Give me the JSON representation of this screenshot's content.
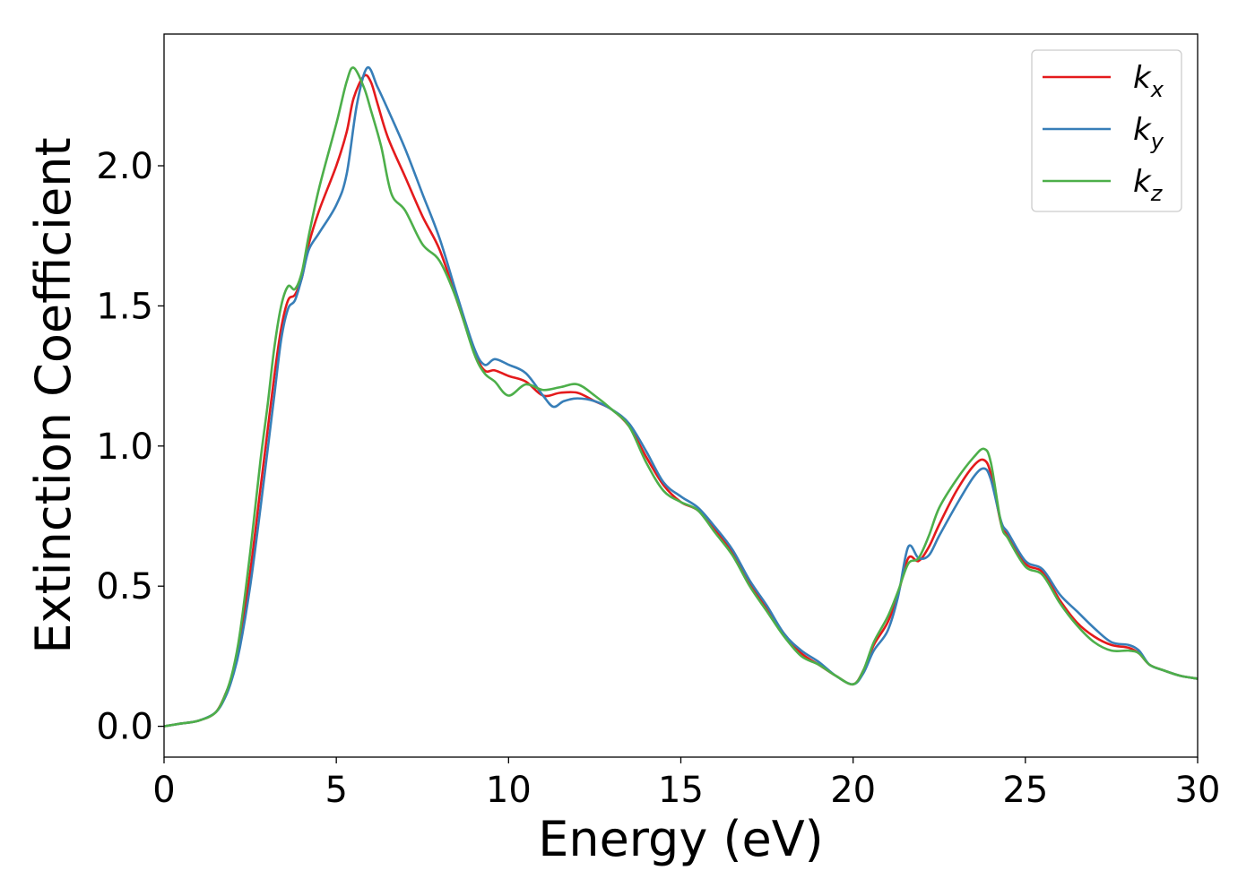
{
  "chart_data": {
    "type": "line",
    "title": "",
    "xlabel": "Energy (eV)",
    "ylabel": "Extinction Coefficient",
    "xlim": [
      0,
      30
    ],
    "ylim": [
      -0.11,
      2.47
    ],
    "xticks": [
      0,
      5,
      10,
      15,
      20,
      25,
      30
    ],
    "xtick_labels": [
      "0",
      "5",
      "10",
      "15",
      "20",
      "25",
      "30"
    ],
    "yticks": [
      0.0,
      0.5,
      1.0,
      1.5,
      2.0
    ],
    "ytick_labels": [
      "0.0",
      "0.5",
      "1.0",
      "1.5",
      "2.0"
    ],
    "grid": false,
    "legend_position": "top-right",
    "series": [
      {
        "name": "k_x",
        "legend_main": "k",
        "legend_sub": "x",
        "color": "#e41a1c",
        "points": [
          [
            0,
            0.0
          ],
          [
            0.5,
            0.01
          ],
          [
            1.0,
            0.02
          ],
          [
            1.5,
            0.05
          ],
          [
            1.8,
            0.12
          ],
          [
            2.0,
            0.19
          ],
          [
            2.2,
            0.3
          ],
          [
            2.5,
            0.55
          ],
          [
            2.8,
            0.85
          ],
          [
            3.0,
            1.05
          ],
          [
            3.2,
            1.25
          ],
          [
            3.4,
            1.42
          ],
          [
            3.6,
            1.52
          ],
          [
            3.8,
            1.54
          ],
          [
            4.0,
            1.6
          ],
          [
            4.2,
            1.72
          ],
          [
            4.5,
            1.84
          ],
          [
            5.0,
            2.0
          ],
          [
            5.3,
            2.12
          ],
          [
            5.5,
            2.24
          ],
          [
            5.8,
            2.32
          ],
          [
            6.0,
            2.3
          ],
          [
            6.2,
            2.22
          ],
          [
            6.5,
            2.1
          ],
          [
            7.0,
            1.96
          ],
          [
            7.5,
            1.82
          ],
          [
            8.0,
            1.7
          ],
          [
            8.5,
            1.52
          ],
          [
            9.0,
            1.34
          ],
          [
            9.3,
            1.27
          ],
          [
            9.6,
            1.27
          ],
          [
            10.0,
            1.25
          ],
          [
            10.5,
            1.23
          ],
          [
            11.0,
            1.18
          ],
          [
            11.5,
            1.19
          ],
          [
            12.0,
            1.19
          ],
          [
            12.5,
            1.16
          ],
          [
            13.0,
            1.13
          ],
          [
            13.5,
            1.07
          ],
          [
            14.0,
            0.96
          ],
          [
            14.5,
            0.86
          ],
          [
            15.0,
            0.8
          ],
          [
            15.5,
            0.77
          ],
          [
            16.0,
            0.7
          ],
          [
            16.5,
            0.62
          ],
          [
            17.0,
            0.51
          ],
          [
            17.5,
            0.42
          ],
          [
            18.0,
            0.33
          ],
          [
            18.5,
            0.26
          ],
          [
            19.0,
            0.22
          ],
          [
            19.5,
            0.18
          ],
          [
            20.0,
            0.15
          ],
          [
            20.3,
            0.2
          ],
          [
            20.6,
            0.29
          ],
          [
            21.0,
            0.37
          ],
          [
            21.3,
            0.47
          ],
          [
            21.6,
            0.6
          ],
          [
            21.9,
            0.59
          ],
          [
            22.2,
            0.64
          ],
          [
            22.5,
            0.72
          ],
          [
            23.0,
            0.84
          ],
          [
            23.5,
            0.93
          ],
          [
            23.8,
            0.95
          ],
          [
            24.0,
            0.9
          ],
          [
            24.3,
            0.72
          ],
          [
            24.5,
            0.68
          ],
          [
            25.0,
            0.58
          ],
          [
            25.5,
            0.55
          ],
          [
            26.0,
            0.45
          ],
          [
            26.5,
            0.37
          ],
          [
            27.0,
            0.32
          ],
          [
            27.5,
            0.29
          ],
          [
            28.0,
            0.28
          ],
          [
            28.3,
            0.26
          ],
          [
            28.6,
            0.22
          ],
          [
            29.0,
            0.2
          ],
          [
            29.5,
            0.18
          ],
          [
            30.0,
            0.17
          ]
        ]
      },
      {
        "name": "k_y",
        "legend_main": "k",
        "legend_sub": "y",
        "color": "#377eb8",
        "points": [
          [
            0,
            0.0
          ],
          [
            0.5,
            0.01
          ],
          [
            1.0,
            0.02
          ],
          [
            1.5,
            0.05
          ],
          [
            1.8,
            0.11
          ],
          [
            2.0,
            0.18
          ],
          [
            2.2,
            0.28
          ],
          [
            2.5,
            0.5
          ],
          [
            2.8,
            0.78
          ],
          [
            3.0,
            0.98
          ],
          [
            3.2,
            1.18
          ],
          [
            3.4,
            1.38
          ],
          [
            3.6,
            1.49
          ],
          [
            3.8,
            1.52
          ],
          [
            4.0,
            1.6
          ],
          [
            4.2,
            1.7
          ],
          [
            4.5,
            1.76
          ],
          [
            5.0,
            1.86
          ],
          [
            5.3,
            1.97
          ],
          [
            5.6,
            2.22
          ],
          [
            5.9,
            2.35
          ],
          [
            6.2,
            2.28
          ],
          [
            6.5,
            2.2
          ],
          [
            7.0,
            2.06
          ],
          [
            7.5,
            1.9
          ],
          [
            8.0,
            1.74
          ],
          [
            8.5,
            1.54
          ],
          [
            9.0,
            1.35
          ],
          [
            9.3,
            1.29
          ],
          [
            9.6,
            1.31
          ],
          [
            10.0,
            1.29
          ],
          [
            10.5,
            1.26
          ],
          [
            11.0,
            1.18
          ],
          [
            11.3,
            1.14
          ],
          [
            11.6,
            1.16
          ],
          [
            12.0,
            1.17
          ],
          [
            12.5,
            1.16
          ],
          [
            13.0,
            1.13
          ],
          [
            13.5,
            1.08
          ],
          [
            14.0,
            0.98
          ],
          [
            14.5,
            0.87
          ],
          [
            15.0,
            0.82
          ],
          [
            15.5,
            0.78
          ],
          [
            16.0,
            0.71
          ],
          [
            16.5,
            0.63
          ],
          [
            17.0,
            0.52
          ],
          [
            17.5,
            0.43
          ],
          [
            18.0,
            0.33
          ],
          [
            18.5,
            0.27
          ],
          [
            19.0,
            0.23
          ],
          [
            19.5,
            0.18
          ],
          [
            20.0,
            0.15
          ],
          [
            20.3,
            0.19
          ],
          [
            20.6,
            0.27
          ],
          [
            21.0,
            0.34
          ],
          [
            21.3,
            0.46
          ],
          [
            21.6,
            0.64
          ],
          [
            21.9,
            0.6
          ],
          [
            22.2,
            0.61
          ],
          [
            22.5,
            0.68
          ],
          [
            23.0,
            0.79
          ],
          [
            23.5,
            0.89
          ],
          [
            23.8,
            0.92
          ],
          [
            24.0,
            0.88
          ],
          [
            24.3,
            0.73
          ],
          [
            24.5,
            0.69
          ],
          [
            25.0,
            0.59
          ],
          [
            25.5,
            0.56
          ],
          [
            26.0,
            0.47
          ],
          [
            26.5,
            0.41
          ],
          [
            27.0,
            0.35
          ],
          [
            27.5,
            0.3
          ],
          [
            28.0,
            0.29
          ],
          [
            28.3,
            0.27
          ],
          [
            28.6,
            0.22
          ],
          [
            29.0,
            0.2
          ],
          [
            29.5,
            0.18
          ],
          [
            30.0,
            0.17
          ]
        ]
      },
      {
        "name": "k_z",
        "legend_main": "k",
        "legend_sub": "z",
        "color": "#4daf4a",
        "points": [
          [
            0,
            0.0
          ],
          [
            0.5,
            0.01
          ],
          [
            1.0,
            0.02
          ],
          [
            1.5,
            0.05
          ],
          [
            1.8,
            0.12
          ],
          [
            2.0,
            0.2
          ],
          [
            2.2,
            0.33
          ],
          [
            2.5,
            0.62
          ],
          [
            2.8,
            0.95
          ],
          [
            3.0,
            1.14
          ],
          [
            3.2,
            1.35
          ],
          [
            3.4,
            1.5
          ],
          [
            3.6,
            1.57
          ],
          [
            3.8,
            1.56
          ],
          [
            4.0,
            1.62
          ],
          [
            4.2,
            1.75
          ],
          [
            4.5,
            1.92
          ],
          [
            5.0,
            2.15
          ],
          [
            5.3,
            2.3
          ],
          [
            5.5,
            2.35
          ],
          [
            5.8,
            2.28
          ],
          [
            6.0,
            2.2
          ],
          [
            6.3,
            2.07
          ],
          [
            6.6,
            1.9
          ],
          [
            7.0,
            1.84
          ],
          [
            7.5,
            1.72
          ],
          [
            8.0,
            1.66
          ],
          [
            8.5,
            1.52
          ],
          [
            9.0,
            1.33
          ],
          [
            9.3,
            1.26
          ],
          [
            9.6,
            1.23
          ],
          [
            10.0,
            1.18
          ],
          [
            10.5,
            1.22
          ],
          [
            11.0,
            1.2
          ],
          [
            11.5,
            1.21
          ],
          [
            12.0,
            1.22
          ],
          [
            12.5,
            1.18
          ],
          [
            13.0,
            1.13
          ],
          [
            13.5,
            1.07
          ],
          [
            14.0,
            0.94
          ],
          [
            14.5,
            0.84
          ],
          [
            15.0,
            0.8
          ],
          [
            15.5,
            0.77
          ],
          [
            16.0,
            0.69
          ],
          [
            16.5,
            0.61
          ],
          [
            17.0,
            0.5
          ],
          [
            17.5,
            0.41
          ],
          [
            18.0,
            0.32
          ],
          [
            18.5,
            0.25
          ],
          [
            19.0,
            0.22
          ],
          [
            19.5,
            0.18
          ],
          [
            20.0,
            0.15
          ],
          [
            20.3,
            0.2
          ],
          [
            20.6,
            0.3
          ],
          [
            21.0,
            0.39
          ],
          [
            21.3,
            0.48
          ],
          [
            21.6,
            0.58
          ],
          [
            21.9,
            0.6
          ],
          [
            22.2,
            0.68
          ],
          [
            22.5,
            0.78
          ],
          [
            23.0,
            0.88
          ],
          [
            23.5,
            0.96
          ],
          [
            23.8,
            0.99
          ],
          [
            24.0,
            0.94
          ],
          [
            24.3,
            0.72
          ],
          [
            24.5,
            0.67
          ],
          [
            25.0,
            0.57
          ],
          [
            25.5,
            0.54
          ],
          [
            26.0,
            0.44
          ],
          [
            26.5,
            0.36
          ],
          [
            27.0,
            0.3
          ],
          [
            27.5,
            0.27
          ],
          [
            28.0,
            0.27
          ],
          [
            28.3,
            0.26
          ],
          [
            28.6,
            0.22
          ],
          [
            29.0,
            0.2
          ],
          [
            29.5,
            0.18
          ],
          [
            30.0,
            0.17
          ]
        ]
      }
    ]
  }
}
